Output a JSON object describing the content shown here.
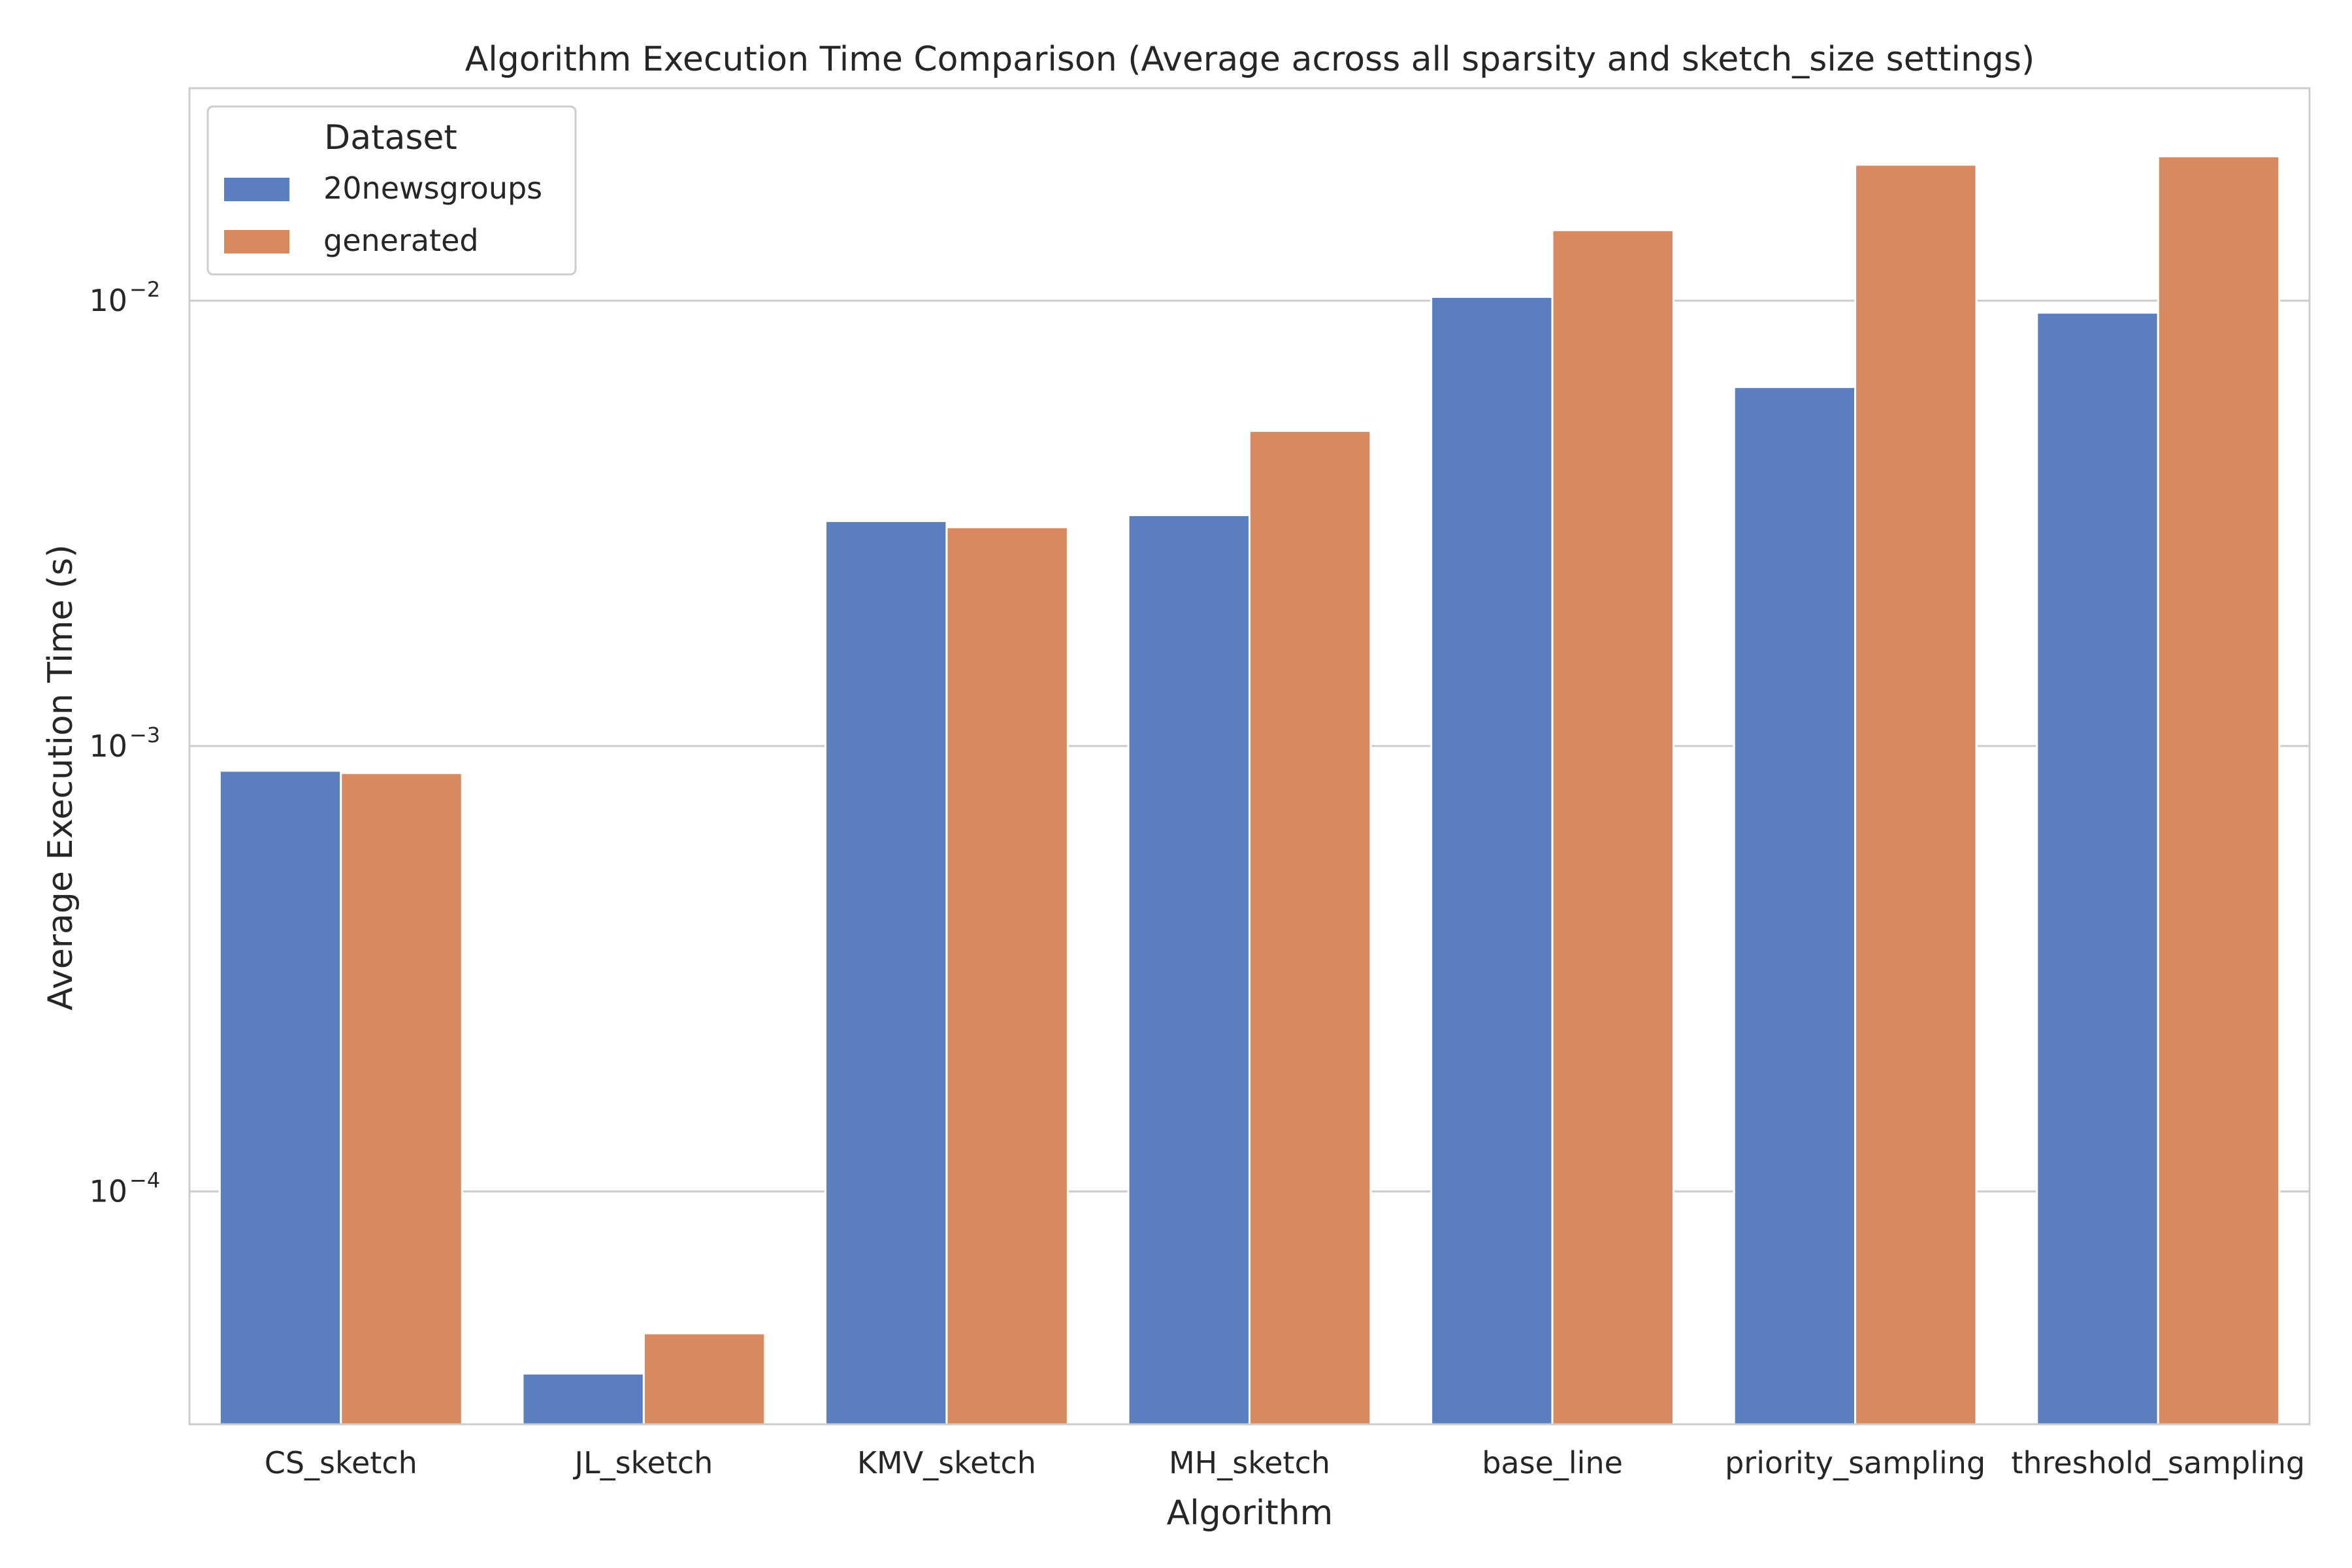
{
  "chart_data": {
    "type": "bar",
    "title": "Algorithm Execution Time Comparison (Average across all sparsity and sketch_size settings)",
    "xlabel": "Algorithm",
    "ylabel": "Average Execution Time (s)",
    "yscale": "log",
    "ylim": [
      3e-05,
      0.03
    ],
    "yticks": [
      {
        "value": 0.0001,
        "base": "10",
        "exp": "−4"
      },
      {
        "value": 0.001,
        "base": "10",
        "exp": "−3"
      },
      {
        "value": 0.01,
        "base": "10",
        "exp": "−2"
      }
    ],
    "grid": true,
    "categories": [
      "CS_sketch",
      "JL_sketch",
      "KMV_sketch",
      "MH_sketch",
      "base_line",
      "priority_sampling",
      "threshold_sampling"
    ],
    "series": [
      {
        "name": "20newsgroups",
        "color": "#5b7ec0",
        "values": [
          0.00088,
          3.9e-05,
          0.0032,
          0.0033,
          0.0102,
          0.0064,
          0.0094
        ]
      },
      {
        "name": "generated",
        "color": "#d8895f",
        "values": [
          0.00087,
          4.8e-05,
          0.0031,
          0.0051,
          0.0144,
          0.0202,
          0.0211
        ]
      }
    ],
    "legend": {
      "title": "Dataset",
      "position": "top-left"
    }
  }
}
